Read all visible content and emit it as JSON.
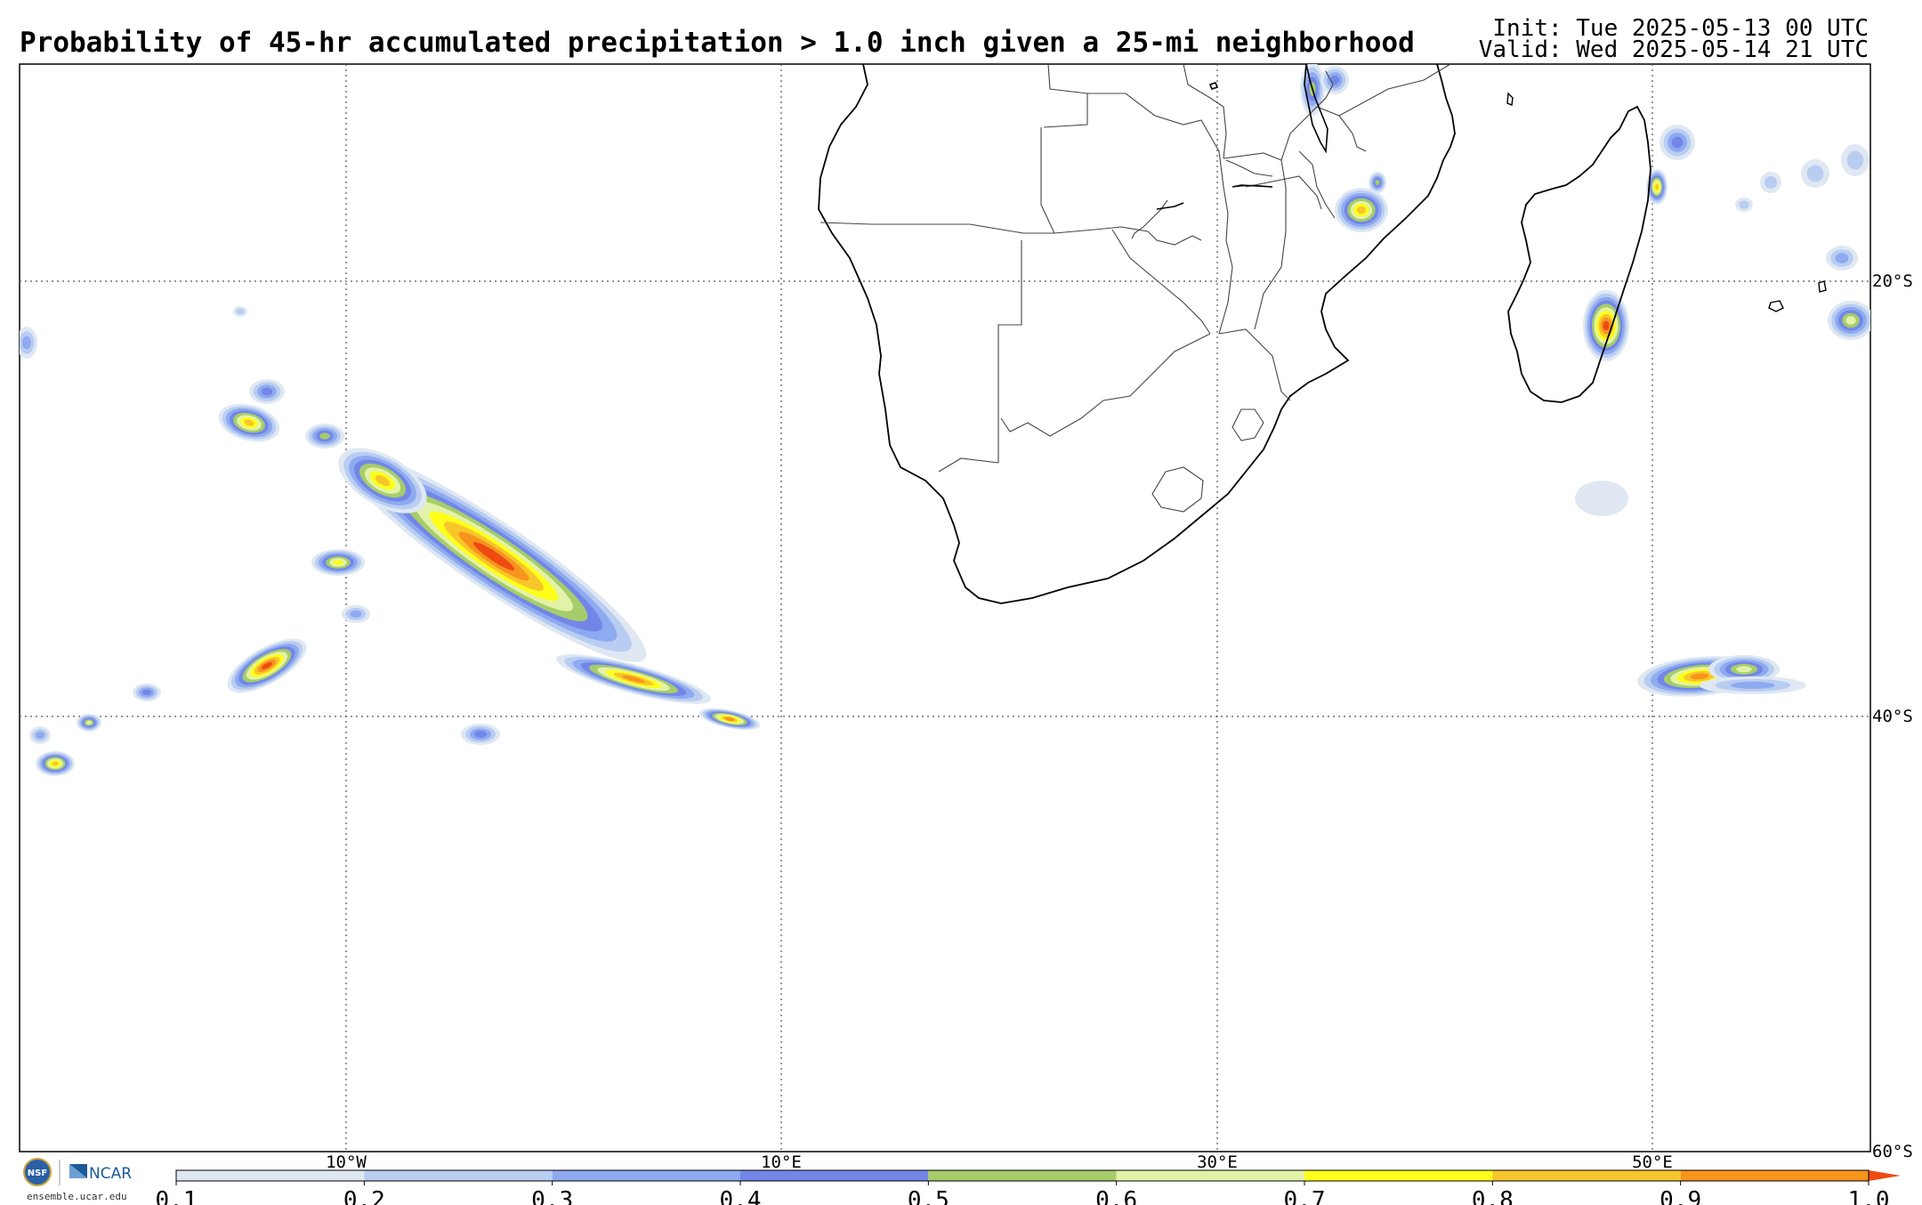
{
  "header": {
    "title": "Probability of 45-hr accumulated precipitation > 1.0 inch given a 25-mi neighborhood",
    "init": "Init: Tue 2025-05-13 00 UTC",
    "valid": "Valid: Wed 2025-05-14 21 UTC"
  },
  "map": {
    "lon_labels": [
      "10°W",
      "10°E",
      "30°E",
      "50°E"
    ],
    "lat_labels": [
      "20°S",
      "40°S",
      "60°S"
    ],
    "colors": {
      "p01": "#dfe8f2",
      "p02": "#b9cdf2",
      "p03": "#8eaaf0",
      "p04": "#7386e8",
      "p05": "#a6cd6a",
      "p06": "#e2f2a8",
      "p07": "#ffff1a",
      "p08": "#f7c62a",
      "p09": "#f7941d",
      "p10": "#ef4a12"
    }
  },
  "colorbar": {
    "ticks": [
      "0.1",
      "0.2",
      "0.3",
      "0.4",
      "0.5",
      "0.6",
      "0.7",
      "0.8",
      "0.9",
      "1.0"
    ],
    "colors": [
      "#dfe8f2",
      "#b9cdf2",
      "#8eaaf0",
      "#7386e8",
      "#a6cd6a",
      "#e2f2a8",
      "#ffff1a",
      "#f7c62a",
      "#f7941d"
    ]
  },
  "footer": {
    "logo_text": "NCAR",
    "site": "ensemble.ucar.edu"
  }
}
